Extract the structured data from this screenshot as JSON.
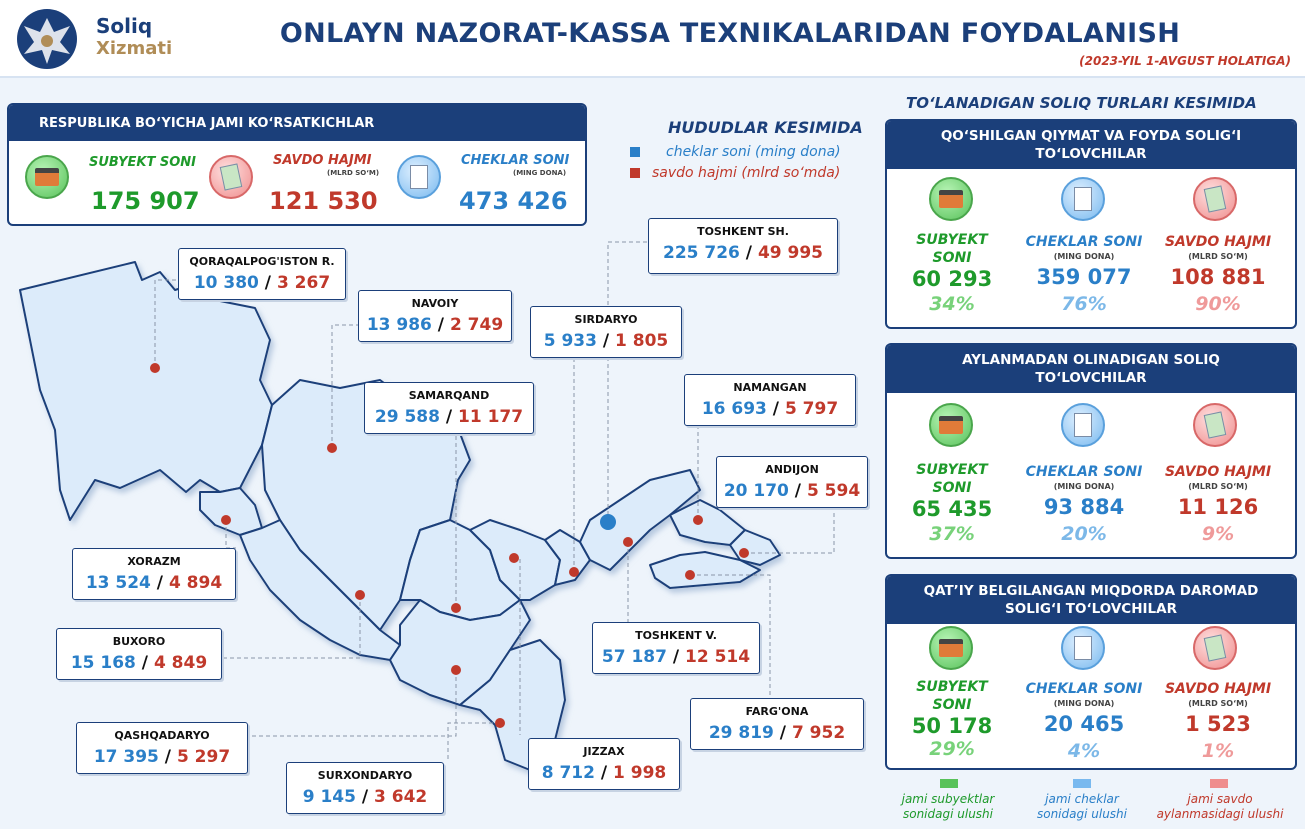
{
  "header": {
    "logo_line1": "Soliq",
    "logo_line2": "Xizmati",
    "title": "ONLAYN NAZORAT-KASSA TEXNIKALARIDAN FOYDALANISH",
    "subtitle": "(2023-YIL 1-AVGUST HOLATIGA)"
  },
  "republic": {
    "title": "RESPUBLIKA BO‘YICHA JAMI KO‘RSATKICHLAR",
    "subyekt_label": "SUBYEKT SONI",
    "subyekt_value": "175 907",
    "savdo_label": "SAVDO HAJMI",
    "savdo_unit": "(MLRD SO‘M)",
    "savdo_value": "121 530",
    "cheklar_label": "CHEKLAR SONI",
    "cheklar_unit": "(MING DONA)",
    "cheklar_value": "473 426"
  },
  "legend": {
    "title": "HUDUDLAR KESIMIDA",
    "blue_text": "cheklar soni (ming dona)",
    "red_text": "savdo hajmi (mlrd so‘mda)",
    "blue_color": "#2a7fc8",
    "red_color": "#c0392b"
  },
  "regions": [
    {
      "name": "QORAQALPOG'ISTON R.",
      "cheklar": "10 380",
      "savdo": "3 267"
    },
    {
      "name": "NAVOIY",
      "cheklar": "13 986",
      "savdo": "2 749"
    },
    {
      "name": "SIRDARYO",
      "cheklar": "5 933",
      "savdo": "1 805"
    },
    {
      "name": "TOSHKENT SH.",
      "cheklar": "225 726",
      "savdo": "49 995"
    },
    {
      "name": "SAMARQAND",
      "cheklar": "29 588",
      "savdo": "11 177"
    },
    {
      "name": "NAMANGAN",
      "cheklar": "16 693",
      "savdo": "5 797"
    },
    {
      "name": "ANDIJON",
      "cheklar": "20 170",
      "savdo": "5 594"
    },
    {
      "name": "XORAZM",
      "cheklar": "13 524",
      "savdo": "4 894"
    },
    {
      "name": "BUXORO",
      "cheklar": "15 168",
      "savdo": "4 849"
    },
    {
      "name": "TOSHKENT V.",
      "cheklar": "57 187",
      "savdo": "12 514"
    },
    {
      "name": "FARG'ONA",
      "cheklar": "29 819",
      "savdo": "7 952"
    },
    {
      "name": "QASHQADARYO",
      "cheklar": "17 395",
      "savdo": "5 297"
    },
    {
      "name": "JIZZAX",
      "cheklar": "8 712",
      "savdo": "1 998"
    },
    {
      "name": "SURXONDARYO",
      "cheklar": "9 145",
      "savdo": "3 642"
    }
  ],
  "sep": "/",
  "tax": {
    "title": "TO‘LANADIGAN SOLIQ TURLARI KESIMIDA",
    "panels": [
      {
        "title1": "QO‘SHILGAN QIYMAT VA FOYDA SOLIG‘I",
        "title2": "TO‘LOVCHILAR",
        "subyekt_label1": "SUBYEKT",
        "subyekt_label2": "SONI",
        "subyekt_value": "60 293",
        "subyekt_pct": "34%",
        "cheklar_label": "CHEKLAR SONI",
        "cheklar_unit": "(MING DONA)",
        "cheklar_value": "359 077",
        "cheklar_pct": "76%",
        "savdo_label": "SAVDO HAJMI",
        "savdo_unit": "(MLRD SO‘M)",
        "savdo_value": "108 881",
        "savdo_pct": "90%"
      },
      {
        "title1": "AYLANMADAN OLINADIGAN SOLIQ",
        "title2": "TO‘LOVCHILAR",
        "subyekt_label1": "SUBYEKT",
        "subyekt_label2": "SONI",
        "subyekt_value": "65 435",
        "subyekt_pct": "37%",
        "cheklar_label": "CHEKLAR SONI",
        "cheklar_unit": "(MING DONA)",
        "cheklar_value": "93 884",
        "cheklar_pct": "20%",
        "savdo_label": "SAVDO HAJMI",
        "savdo_unit": "(MLRD SO‘M)",
        "savdo_value": "11 126",
        "savdo_pct": "9%"
      },
      {
        "title1": "QAT’IY BELGILANGAN MIQDORDA DAROMAD",
        "title2": "SOLIG‘I TO‘LOVCHILAR",
        "subyekt_label1": "SUBYEKT",
        "subyekt_label2": "SONI",
        "subyekt_value": "50 178",
        "subyekt_pct": "29%",
        "cheklar_label": "CHEKLAR SONI",
        "cheklar_unit": "(MING DONA)",
        "cheklar_value": "20 465",
        "cheklar_pct": "4%",
        "savdo_label": "SAVDO HAJMI",
        "savdo_unit": "(MLRD SO‘M)",
        "savdo_value": "1 523",
        "savdo_pct": "1%"
      }
    ]
  },
  "footer": {
    "green_line1": "jami subyektlar",
    "green_line2": "sonidagi ulushi",
    "blue_line1": "jami cheklar",
    "blue_line2": "sonidagi ulushi",
    "red_line1": "jami savdo",
    "red_line2": "aylanmasidagi ulushi",
    "green_color": "#58c25a",
    "blue_color": "#79b9ef",
    "red_color": "#ef8d8d"
  }
}
